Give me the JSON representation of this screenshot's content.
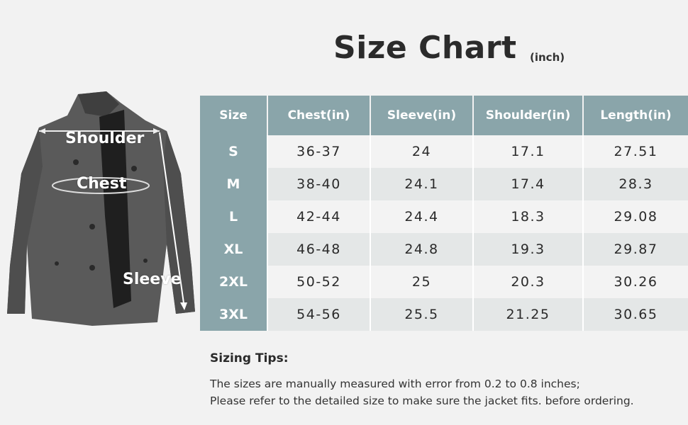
{
  "title": "Size Chart",
  "unit": "(inch)",
  "jacket_labels": {
    "shoulder": "Shoulder",
    "chest": "Chest",
    "sleeve": "Sleeve"
  },
  "colors": {
    "header": "#8aa5aa",
    "row_light": "#f3f3f3",
    "row_dark": "#e4e7e7",
    "background": "#f2f2f2"
  },
  "table": {
    "headers": [
      "Size",
      "Chest(in)",
      "Sleeve(in)",
      "Shoulder(in)",
      "Length(in)"
    ],
    "rows": [
      [
        "S",
        "36-37",
        "24",
        "17.1",
        "27.51"
      ],
      [
        "M",
        "38-40",
        "24.1",
        "17.4",
        "28.3"
      ],
      [
        "L",
        "42-44",
        "24.4",
        "18.3",
        "29.08"
      ],
      [
        "XL",
        "46-48",
        "24.8",
        "19.3",
        "29.87"
      ],
      [
        "2XL",
        "50-52",
        "25",
        "20.3",
        "30.26"
      ],
      [
        "3XL",
        "54-56",
        "25.5",
        "21.25",
        "30.65"
      ]
    ]
  },
  "tips": {
    "heading": "Sizing Tips:",
    "lines": [
      "The sizes are manually measured with error from 0.2 to 0.8 inches;",
      "Please refer to the detailed size to make sure the jacket fits. before ordering."
    ]
  }
}
